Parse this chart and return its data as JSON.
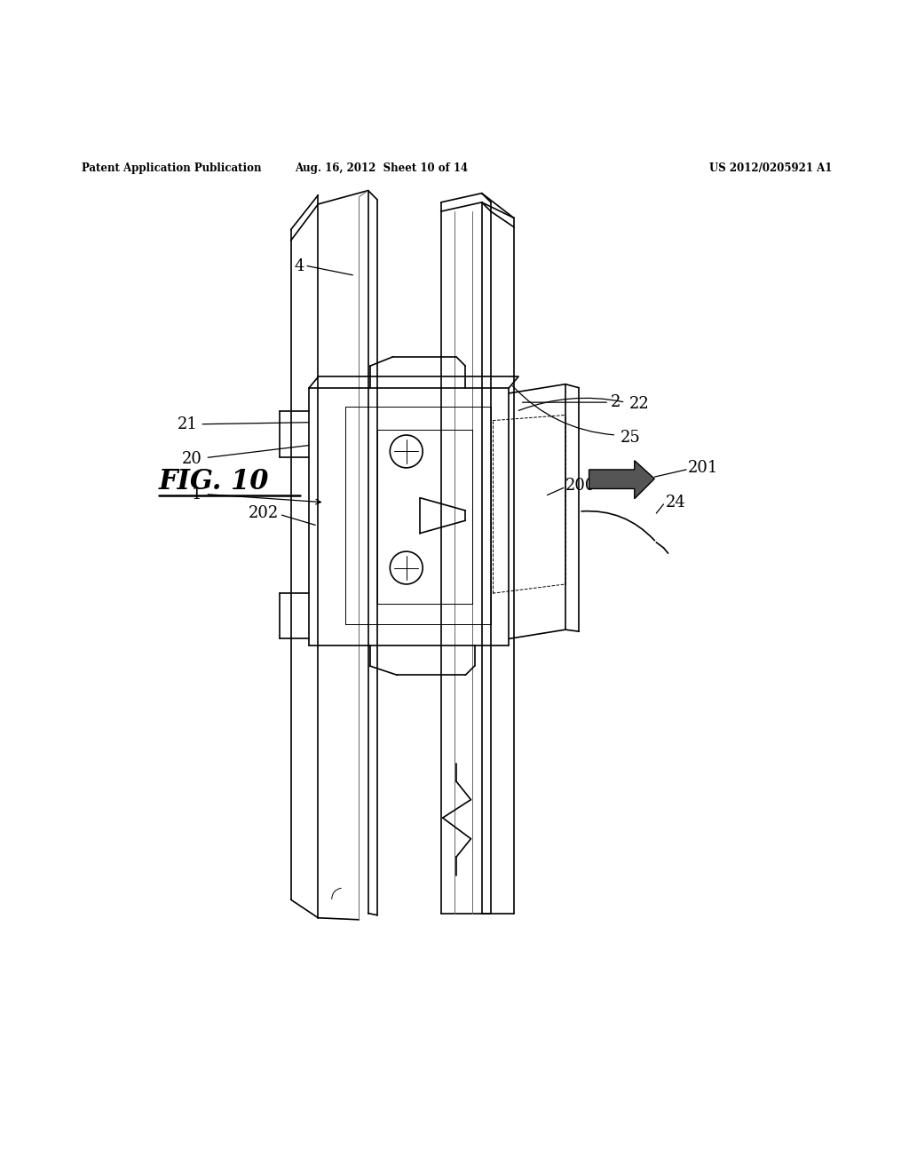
{
  "background_color": "#ffffff",
  "header_left": "Patent Application Publication",
  "header_center": "Aug. 16, 2012  Sheet 10 of 14",
  "header_right": "US 2012/0205921 A1",
  "fig_label": "FIG. 10",
  "line_color": "#000000",
  "lw": 1.2,
  "thin_lw": 0.7,
  "dark_color": "#555555",
  "label_fontsize": 13,
  "header_fontsize": 8.5
}
